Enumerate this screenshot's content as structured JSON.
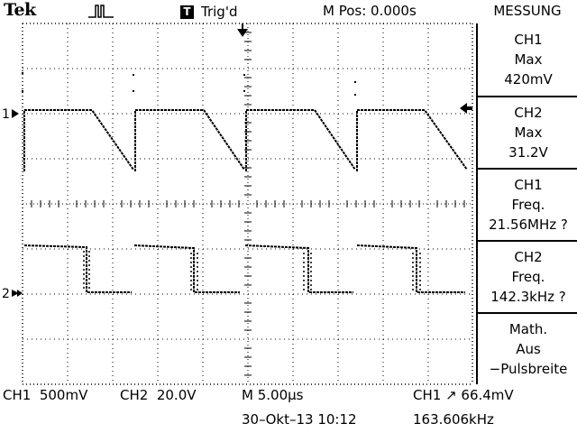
{
  "header": {
    "brand": "Tek",
    "trigger_badge": "T",
    "trigger_status": "Trig'd",
    "m_pos": "M Pos: 0.000s"
  },
  "measure_menu": {
    "title": "MESSUNG",
    "items": [
      {
        "lines": [
          "CH1",
          "Max",
          "420mV"
        ]
      },
      {
        "lines": [
          "CH2",
          "Max",
          "31.2V"
        ]
      },
      {
        "lines": [
          "CH1",
          "Freq.",
          "21.56MHz ?"
        ]
      },
      {
        "lines": [
          "CH2",
          "Freq.",
          "142.3kHz ?"
        ]
      },
      {
        "lines": [
          "Math.",
          "Aus",
          "−Pulsbreite"
        ]
      }
    ]
  },
  "channel_markers": {
    "ch1": "1",
    "ch2": "2"
  },
  "status_bar": {
    "ch1_scale": "CH1  500mV",
    "ch2_scale": "CH2  20.0V",
    "timebase": "M 5.00μs",
    "trigger": "CH1 ↗ 66.4mV",
    "datetime": "30–Okt–13 10:12",
    "frequency": "163.606kHz"
  },
  "colors": {
    "background": "#ffffff",
    "foreground": "#000000",
    "graticule": "#000000"
  }
}
